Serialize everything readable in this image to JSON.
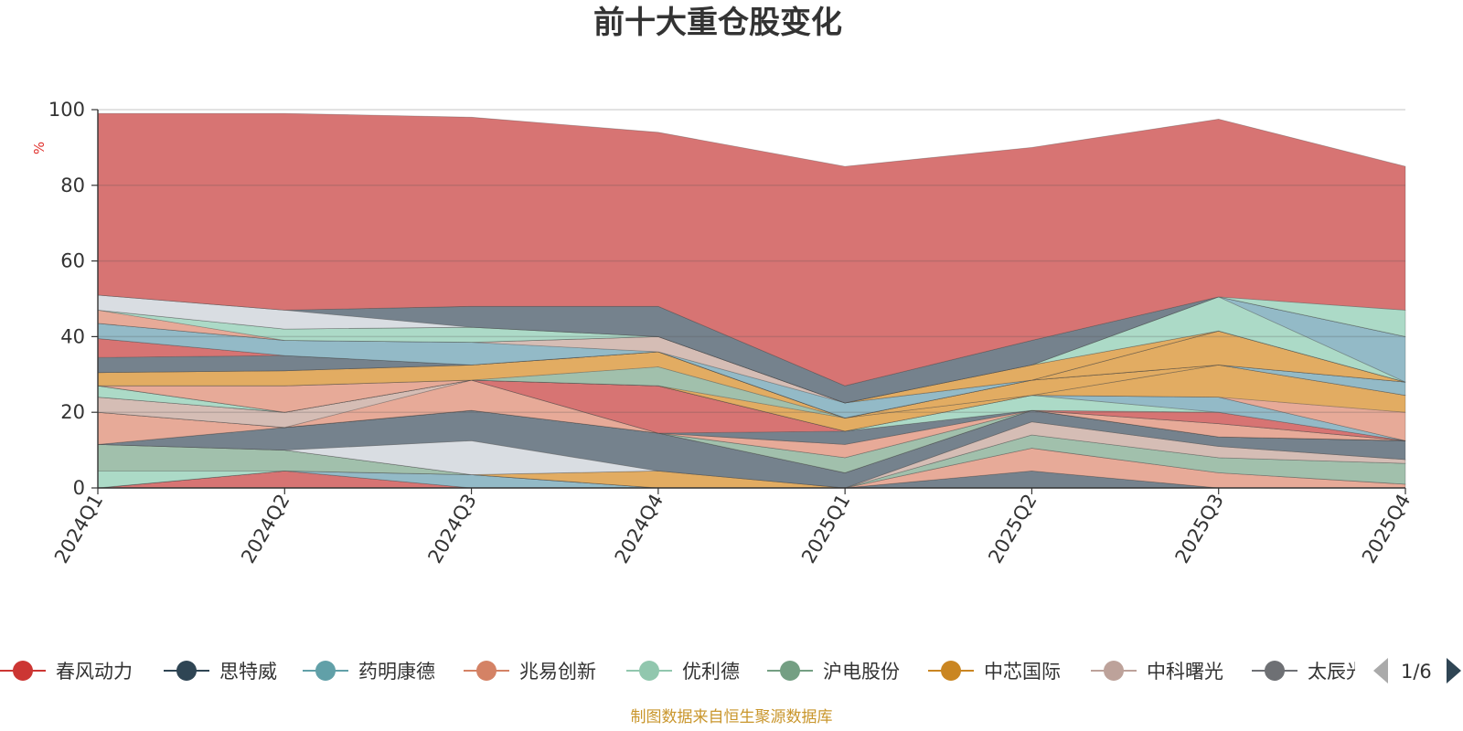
{
  "chart_data": {
    "type": "area",
    "title": "前十大重仓股变化",
    "ylabel": "%",
    "ylim": [
      0,
      100
    ],
    "yticks": [
      0,
      20,
      40,
      60,
      80,
      100
    ],
    "grid": true,
    "categories": [
      "2024Q1",
      "2024Q2",
      "2024Q3",
      "2024Q4",
      "2025Q1",
      "2025Q2",
      "2025Q3",
      "2025Q4"
    ],
    "series": [
      {
        "name": "春风动力",
        "color": "#d56d6b",
        "values": [
          0,
          4.5,
          0,
          0,
          0,
          0,
          0,
          0
        ]
      },
      {
        "name": "思特威",
        "color": "#6e7b87",
        "values": [
          0,
          0,
          0,
          0,
          0,
          4.5,
          0,
          0
        ]
      },
      {
        "name": "药明康德",
        "color": "#8db6c4",
        "values": [
          0,
          0,
          3.5,
          0,
          0,
          0,
          0,
          0
        ]
      },
      {
        "name": "兆易创新",
        "color": "#e6a592",
        "values": [
          0,
          0,
          0,
          0,
          0,
          6,
          4,
          1
        ]
      },
      {
        "name": "优利德",
        "color": "#a8d8c4",
        "values": [
          4.5,
          0,
          0,
          0,
          0,
          0,
          0,
          0
        ]
      },
      {
        "name": "沪电股份",
        "color": "#9cbda8",
        "values": [
          7,
          5.5,
          0,
          0,
          0,
          3.5,
          4,
          5.5
        ]
      },
      {
        "name": "中芯国际",
        "color": "#e0a85a",
        "values": [
          0,
          0,
          0,
          4.5,
          0,
          0,
          0,
          0
        ]
      },
      {
        "name": "中科曙光",
        "color": "#d3b9b1",
        "values": [
          0,
          0,
          0,
          0,
          0,
          3.5,
          3,
          1
        ]
      },
      {
        "name": "太辰光",
        "color": "#d7dbe0",
        "values": [
          0,
          0,
          9,
          0,
          0,
          0,
          0,
          0
        ]
      },
      {
        "name": "",
        "color": "#6e7b87",
        "values": [
          0,
          6,
          8,
          10,
          4,
          3,
          2.5,
          5
        ]
      },
      {
        "name": "",
        "color": "#d3b9b1",
        "values": [
          0,
          0,
          0,
          0,
          0,
          0,
          0,
          0
        ]
      },
      {
        "name": "",
        "color": "#e6a592",
        "values": [
          8.5,
          0,
          0,
          0,
          0,
          0,
          0,
          0
        ]
      },
      {
        "name": "",
        "color": "#9cbda8",
        "values": [
          0,
          0,
          0,
          0,
          4,
          0,
          0,
          0
        ]
      },
      {
        "name": "",
        "color": "#a8d8c4",
        "values": [
          0,
          0,
          0,
          0,
          0,
          0,
          0,
          0
        ]
      },
      {
        "name": "",
        "color": "#e6a592",
        "values": [
          0,
          0,
          8,
          0,
          3.5,
          0,
          3.5,
          0
        ]
      },
      {
        "name": "",
        "color": "#d3b9b1",
        "values": [
          4,
          4,
          0,
          0,
          0,
          0,
          0,
          0
        ]
      },
      {
        "name": "",
        "color": "#6e7b87",
        "values": [
          0,
          0,
          0,
          0,
          3.5,
          0,
          0,
          0
        ]
      },
      {
        "name": "",
        "color": "#d56d6b",
        "values": [
          0,
          0,
          0,
          12.5,
          0,
          0,
          3,
          0
        ]
      },
      {
        "name": "",
        "color": "#a8d8c4",
        "values": [
          3,
          0,
          0,
          0,
          0,
          4,
          0,
          0
        ]
      },
      {
        "name": "",
        "color": "#8db6c4",
        "values": [
          0,
          0,
          0,
          0,
          0,
          0,
          4,
          0
        ]
      },
      {
        "name": "",
        "color": "#9cbda8",
        "values": [
          0,
          0,
          0,
          0,
          0,
          0,
          0,
          0
        ]
      },
      {
        "name": "",
        "color": "#e6a592",
        "values": [
          0,
          7,
          0,
          0,
          0,
          0,
          0,
          7.5
        ]
      },
      {
        "name": "",
        "color": "#e0a85a",
        "values": [
          0,
          0,
          0,
          0,
          3.5,
          0,
          8.5,
          4.5
        ]
      },
      {
        "name": "",
        "color": "#9cbda8",
        "values": [
          0,
          0,
          0,
          5,
          0,
          0,
          0,
          0
        ]
      },
      {
        "name": "",
        "color": "#e0a85a",
        "values": [
          3.5,
          4,
          4,
          4,
          0,
          4,
          0,
          0
        ]
      },
      {
        "name": "",
        "color": "#8db6c4",
        "values": [
          0,
          0,
          0,
          0,
          0,
          0,
          0,
          3.5
        ]
      },
      {
        "name": "",
        "color": "#e6a592",
        "values": [
          0,
          0,
          0,
          0,
          0,
          0,
          0,
          0
        ]
      },
      {
        "name": "",
        "color": "#6e7b87",
        "values": [
          4,
          4,
          0,
          0,
          0,
          0,
          0,
          0
        ]
      },
      {
        "name": "",
        "color": "#d56d6b",
        "values": [
          5,
          0,
          0,
          0,
          0,
          0,
          0,
          0
        ]
      },
      {
        "name": "",
        "color": "#e0a85a",
        "values": [
          0,
          0,
          0,
          0,
          0,
          0,
          9,
          0
        ]
      },
      {
        "name": "",
        "color": "#8db6c4",
        "values": [
          4,
          4,
          6,
          0,
          4,
          0,
          0,
          0
        ]
      },
      {
        "name": "",
        "color": "#d3b9b1",
        "values": [
          0,
          0,
          0,
          4,
          0,
          0,
          0,
          0
        ]
      },
      {
        "name": "",
        "color": "#e0a85a",
        "values": [
          0,
          0,
          0,
          0,
          0,
          4,
          0,
          0
        ]
      },
      {
        "name": "",
        "color": "#e6a592",
        "values": [
          3.5,
          0,
          0,
          0,
          0,
          0,
          0,
          0
        ]
      },
      {
        "name": "",
        "color": "#a8d8c4",
        "values": [
          0,
          3,
          4,
          0,
          0,
          0,
          9,
          0
        ]
      },
      {
        "name": "",
        "color": "#8db6c4",
        "values": [
          0,
          0,
          0,
          0,
          0,
          0,
          0,
          12
        ]
      },
      {
        "name": "",
        "color": "#d7dbe0",
        "values": [
          4,
          5,
          0,
          0,
          0,
          0,
          0,
          0
        ]
      },
      {
        "name": "",
        "color": "#6e7b87",
        "values": [
          0,
          0,
          5.5,
          8,
          4.5,
          6.5,
          0,
          0
        ]
      },
      {
        "name": "",
        "color": "#a8d8c4",
        "values": [
          0,
          0,
          0,
          0,
          0,
          0,
          0,
          7
        ]
      },
      {
        "name": "",
        "color": "#d56d6b",
        "values": [
          48,
          52,
          50,
          46,
          58,
          51,
          47,
          38
        ]
      }
    ]
  },
  "legend": {
    "items": [
      {
        "name": "春风动力",
        "color": "#cc3633"
      },
      {
        "name": "思特威",
        "color": "#2f4554"
      },
      {
        "name": "药明康德",
        "color": "#61a0a8"
      },
      {
        "name": "兆易创新",
        "color": "#d48265"
      },
      {
        "name": "优利德",
        "color": "#91c7ae"
      },
      {
        "name": "沪电股份",
        "color": "#749f83"
      },
      {
        "name": "中芯国际",
        "color": "#ca8622"
      },
      {
        "name": "中科曙光",
        "color": "#bda29a"
      },
      {
        "name": "太辰光",
        "color": "#6e7074"
      }
    ],
    "page": "1/6"
  },
  "source": "制图数据来自恒生聚源数据库"
}
